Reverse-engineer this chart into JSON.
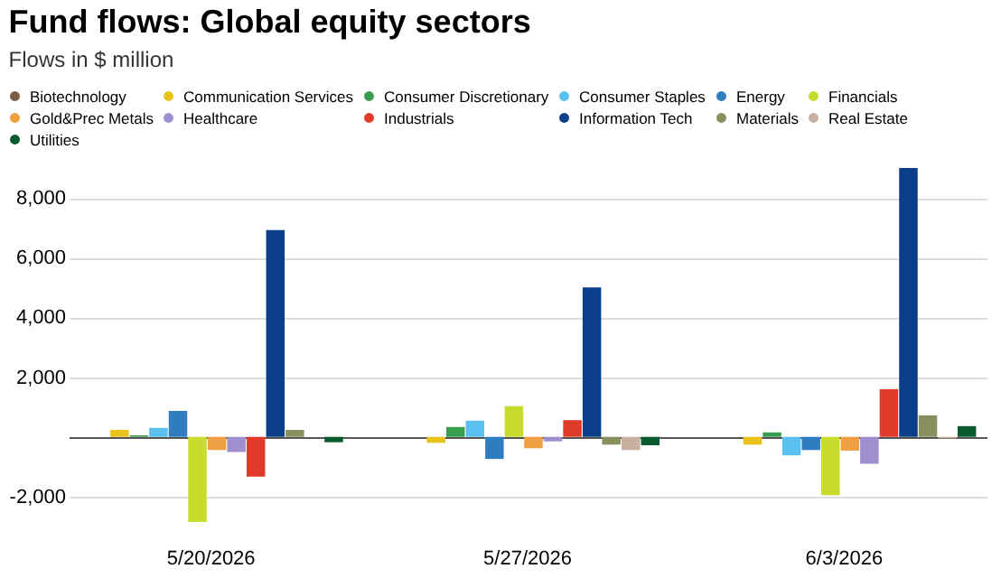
{
  "chart_data": {
    "type": "bar",
    "title": "Fund flows: Global equity sectors",
    "subtitle": "Flows in $ million",
    "categories": [
      "5/20/2026",
      "5/27/2026",
      "6/3/2026"
    ],
    "series": [
      {
        "name": "Biotechnology",
        "color": "#7a5c48",
        "values": [
          0,
          0,
          0
        ]
      },
      {
        "name": "Communication Services",
        "color": "#e8c31c",
        "values": [
          230,
          -200,
          -260
        ]
      },
      {
        "name": "Consumer Discretionary",
        "color": "#3a9c4e",
        "values": [
          50,
          330,
          150
        ]
      },
      {
        "name": "Consumer Staples",
        "color": "#5bc0f0",
        "values": [
          300,
          540,
          -620
        ]
      },
      {
        "name": "Energy",
        "color": "#2f7cc0",
        "values": [
          870,
          -740,
          -440
        ]
      },
      {
        "name": "Financials",
        "color": "#c8dc2e",
        "values": [
          -2850,
          1030,
          -1950
        ]
      },
      {
        "name": "Gold&Prec Metals",
        "color": "#f0a040",
        "values": [
          -440,
          -380,
          -460
        ]
      },
      {
        "name": "Healthcare",
        "color": "#9f8fcf",
        "values": [
          -510,
          -150,
          -900
        ]
      },
      {
        "name": "Industrials",
        "color": "#e03a2a",
        "values": [
          -1330,
          560,
          1590
        ]
      },
      {
        "name": "Information Tech",
        "color": "#0a3d8a",
        "values": [
          6920,
          5000,
          9000
        ]
      },
      {
        "name": "Materials",
        "color": "#8a8f60",
        "values": [
          230,
          -260,
          720
        ]
      },
      {
        "name": "Real Estate",
        "color": "#c8b0a0",
        "values": [
          0,
          -440,
          -50
        ]
      },
      {
        "name": "Utilities",
        "color": "#0a5a30",
        "values": [
          -180,
          -280,
          360
        ]
      }
    ],
    "ylim": [
      -2850,
      9000
    ],
    "yticks": [
      {
        "value": -2000,
        "label": "-2,000"
      },
      {
        "value": 0,
        "label": null
      },
      {
        "value": 2000,
        "label": "2,000"
      },
      {
        "value": 4000,
        "label": "4,000"
      },
      {
        "value": 6000,
        "label": "6,000"
      },
      {
        "value": 8000,
        "label": "8,000"
      }
    ],
    "grid": "y",
    "legend": "top"
  }
}
